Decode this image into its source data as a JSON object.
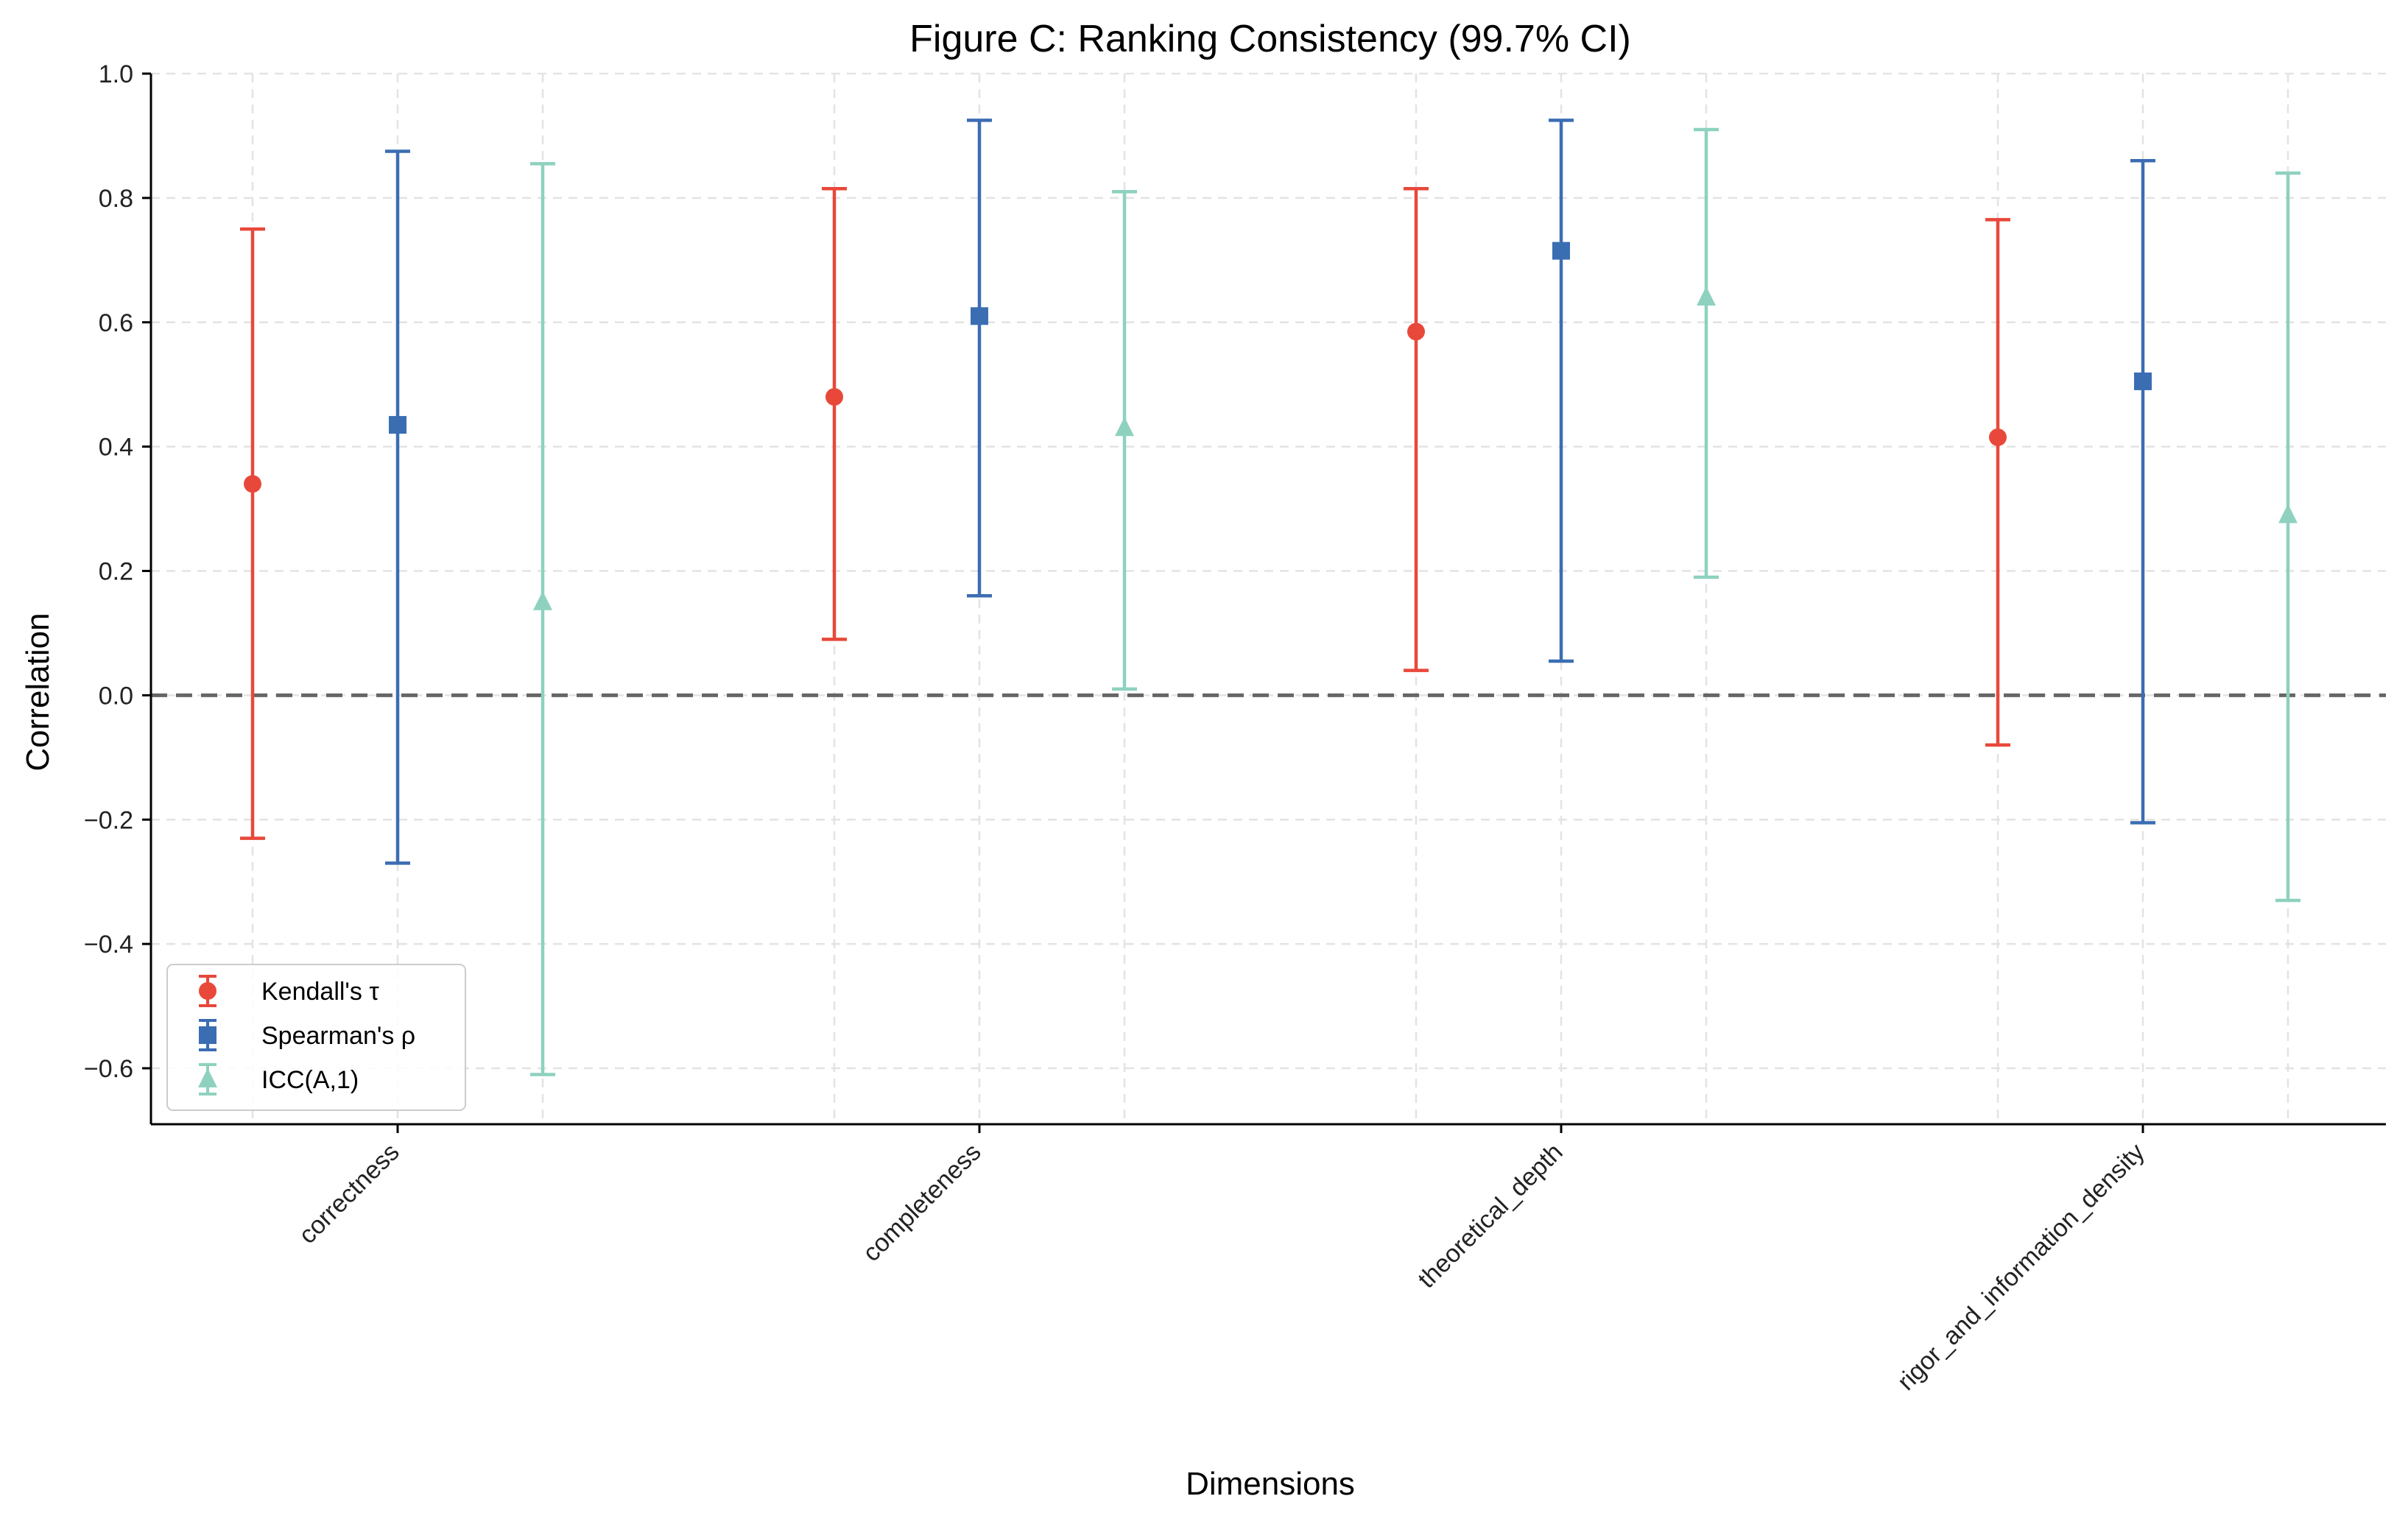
{
  "chart_data": {
    "type": "errorbar",
    "title": "Figure C: Ranking Consistency (99.7% CI)",
    "xlabel": "Dimensions",
    "ylabel": "Correlation",
    "ylim": [
      -0.69,
      1.0
    ],
    "yticks": [
      "1.0",
      "0.8",
      "0.6",
      "0.4",
      "0.2",
      "0.0",
      "−0.2",
      "−0.4",
      "−0.6"
    ],
    "ytick_values": [
      1.0,
      0.8,
      0.6,
      0.4,
      0.2,
      0.0,
      -0.2,
      -0.4,
      -0.6
    ],
    "grid": true,
    "reference_line": 0.0,
    "legend_position": "lower-left",
    "categories": [
      "correctness",
      "completeness",
      "theoretical_depth",
      "rigor_and_information_density"
    ],
    "series": [
      {
        "name": "Kendall's τ",
        "color": "#e8483a",
        "marker": "circle",
        "values": [
          0.34,
          0.48,
          0.585,
          0.415
        ],
        "lower": [
          -0.23,
          0.09,
          0.04,
          -0.08
        ],
        "upper": [
          0.75,
          0.815,
          0.815,
          0.765
        ]
      },
      {
        "name": "Spearman's ρ",
        "color": "#3b6db3",
        "marker": "square",
        "values": [
          0.435,
          0.61,
          0.715,
          0.505
        ],
        "lower": [
          -0.27,
          0.16,
          0.055,
          -0.205
        ],
        "upper": [
          0.875,
          0.925,
          0.925,
          0.86
        ]
      },
      {
        "name": "ICC(A,1)",
        "color": "#8ed1bf",
        "marker": "triangle",
        "values": [
          0.15,
          0.43,
          0.64,
          0.29
        ],
        "lower": [
          -0.61,
          0.01,
          0.19,
          -0.33
        ],
        "upper": [
          0.855,
          0.81,
          0.91,
          0.84
        ]
      }
    ]
  }
}
